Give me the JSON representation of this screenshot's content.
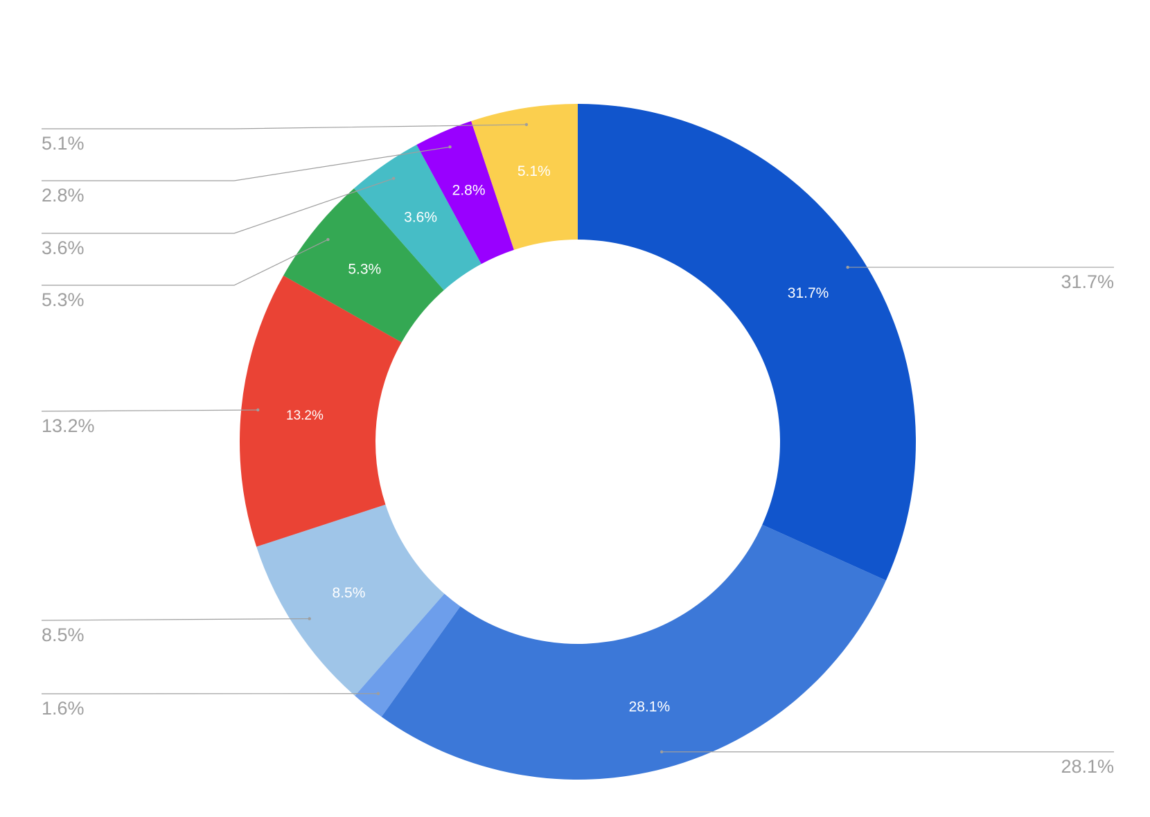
{
  "chart_data": {
    "type": "pie",
    "donut": true,
    "title": "",
    "slices": [
      {
        "value": 31.7,
        "label": "31.7%",
        "color": "#1155cc"
      },
      {
        "value": 28.1,
        "label": "28.1%",
        "color": "#3c78d8"
      },
      {
        "value": 1.6,
        "label": "1.6%",
        "color": "#6d9eeb"
      },
      {
        "value": 8.5,
        "label": "8.5%",
        "color": "#9fc5e8"
      },
      {
        "value": 13.2,
        "label": "13.2%",
        "color": "#ea4335"
      },
      {
        "value": 5.3,
        "label": "5.3%",
        "color": "#34a853"
      },
      {
        "value": 3.6,
        "label": "3.6%",
        "color": "#46bdc6"
      },
      {
        "value": 2.8,
        "label": "2.8%",
        "color": "#9900ff"
      },
      {
        "value": 5.1,
        "label": "5.1%",
        "color": "#fbcf4e"
      }
    ],
    "start_angle": "12 o'clock",
    "direction": "clockwise",
    "legend": "none",
    "label_position": "inside-and-outside"
  }
}
